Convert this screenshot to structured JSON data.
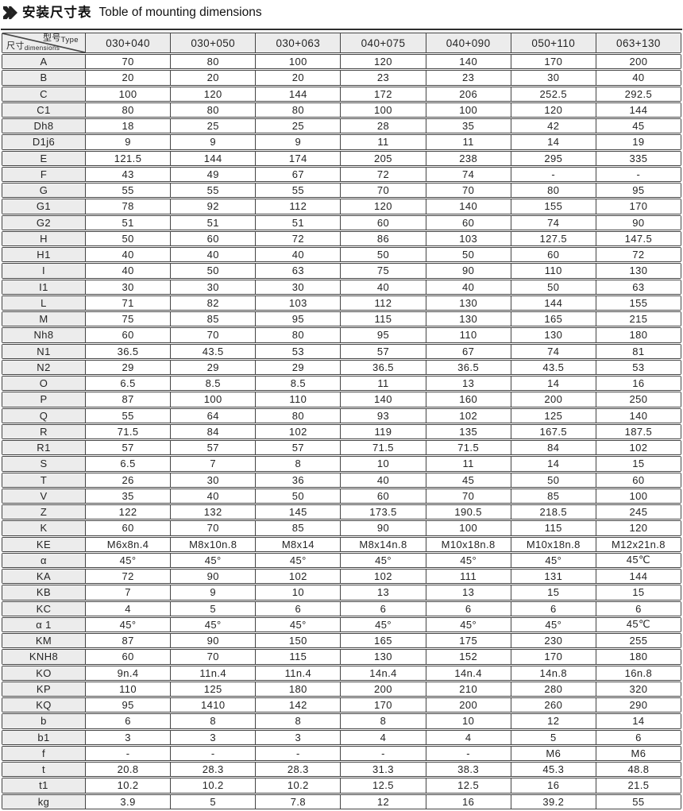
{
  "title": {
    "zh": "安装尺寸表",
    "en": "Toble of mounting dimensions",
    "icon": "double-arrow-icon"
  },
  "colors": {
    "border": "#454545",
    "header_bg": "#ececec",
    "text": "#252525"
  },
  "table": {
    "corner": {
      "type_zh": "型号",
      "type_en": "Type",
      "dim_zh": "尺寸",
      "dim_en": "dimensions"
    },
    "columns": [
      "030+040",
      "030+050",
      "030+063",
      "040+075",
      "040+090",
      "050+110",
      "063+130"
    ],
    "rows": [
      {
        "label": "A",
        "values": [
          "70",
          "80",
          "100",
          "120",
          "140",
          "170",
          "200"
        ]
      },
      {
        "label": "B",
        "values": [
          "20",
          "20",
          "20",
          "23",
          "23",
          "30",
          "40"
        ]
      },
      {
        "label": "C",
        "values": [
          "100",
          "120",
          "144",
          "172",
          "206",
          "252.5",
          "292.5"
        ]
      },
      {
        "label": "C1",
        "values": [
          "80",
          "80",
          "80",
          "100",
          "100",
          "120",
          "144"
        ]
      },
      {
        "label": "Dh8",
        "values": [
          "18",
          "25",
          "25",
          "28",
          "35",
          "42",
          "45"
        ]
      },
      {
        "label": "D1j6",
        "values": [
          "9",
          "9",
          "9",
          "11",
          "11",
          "14",
          "19"
        ]
      },
      {
        "label": "E",
        "values": [
          "121.5",
          "144",
          "174",
          "205",
          "238",
          "295",
          "335"
        ]
      },
      {
        "label": "F",
        "values": [
          "43",
          "49",
          "67",
          "72",
          "74",
          "-",
          "-"
        ]
      },
      {
        "label": "G",
        "values": [
          "55",
          "55",
          "55",
          "70",
          "70",
          "80",
          "95"
        ]
      },
      {
        "label": "G1",
        "values": [
          "78",
          "92",
          "112",
          "120",
          "140",
          "155",
          "170"
        ]
      },
      {
        "label": "G2",
        "values": [
          "51",
          "51",
          "51",
          "60",
          "60",
          "74",
          "90"
        ]
      },
      {
        "label": "H",
        "values": [
          "50",
          "60",
          "72",
          "86",
          "103",
          "127.5",
          "147.5"
        ]
      },
      {
        "label": "H1",
        "values": [
          "40",
          "40",
          "40",
          "50",
          "50",
          "60",
          "72"
        ]
      },
      {
        "label": "I",
        "values": [
          "40",
          "50",
          "63",
          "75",
          "90",
          "110",
          "130"
        ]
      },
      {
        "label": "I1",
        "values": [
          "30",
          "30",
          "30",
          "40",
          "40",
          "50",
          "63"
        ]
      },
      {
        "label": "L",
        "values": [
          "71",
          "82",
          "103",
          "112",
          "130",
          "144",
          "155"
        ]
      },
      {
        "label": "M",
        "values": [
          "75",
          "85",
          "95",
          "115",
          "130",
          "165",
          "215"
        ]
      },
      {
        "label": "Nh8",
        "values": [
          "60",
          "70",
          "80",
          "95",
          "110",
          "130",
          "180"
        ]
      },
      {
        "label": "N1",
        "values": [
          "36.5",
          "43.5",
          "53",
          "57",
          "67",
          "74",
          "81"
        ]
      },
      {
        "label": "N2",
        "values": [
          "29",
          "29",
          "29",
          "36.5",
          "36.5",
          "43.5",
          "53"
        ]
      },
      {
        "label": "O",
        "values": [
          "6.5",
          "8.5",
          "8.5",
          "11",
          "13",
          "14",
          "16"
        ]
      },
      {
        "label": "P",
        "values": [
          "87",
          "100",
          "110",
          "140",
          "160",
          "200",
          "250"
        ]
      },
      {
        "label": "Q",
        "values": [
          "55",
          "64",
          "80",
          "93",
          "102",
          "125",
          "140"
        ]
      },
      {
        "label": "R",
        "values": [
          "71.5",
          "84",
          "102",
          "119",
          "135",
          "167.5",
          "187.5"
        ]
      },
      {
        "label": "R1",
        "values": [
          "57",
          "57",
          "57",
          "71.5",
          "71.5",
          "84",
          "102"
        ]
      },
      {
        "label": "S",
        "values": [
          "6.5",
          "7",
          "8",
          "10",
          "11",
          "14",
          "15"
        ]
      },
      {
        "label": "T",
        "values": [
          "26",
          "30",
          "36",
          "40",
          "45",
          "50",
          "60"
        ]
      },
      {
        "label": "V",
        "values": [
          "35",
          "40",
          "50",
          "60",
          "70",
          "85",
          "100"
        ]
      },
      {
        "label": "Z",
        "values": [
          "122",
          "132",
          "145",
          "173.5",
          "190.5",
          "218.5",
          "245"
        ]
      },
      {
        "label": "K",
        "values": [
          "60",
          "70",
          "85",
          "90",
          "100",
          "115",
          "120"
        ]
      },
      {
        "label": "KE",
        "values": [
          "M6x8n.4",
          "M8x10n.8",
          "M8x14",
          "M8x14n.8",
          "M10x18n.8",
          "M10x18n.8",
          "M12x21n.8"
        ]
      },
      {
        "label": "α",
        "values": [
          "45°",
          "45°",
          "45°",
          "45°",
          "45°",
          "45°",
          "45℃"
        ]
      },
      {
        "label": "KA",
        "values": [
          "72",
          "90",
          "102",
          "102",
          "111",
          "131",
          "144"
        ]
      },
      {
        "label": "KB",
        "values": [
          "7",
          "9",
          "10",
          "13",
          "13",
          "15",
          "15"
        ]
      },
      {
        "label": "KC",
        "values": [
          "4",
          "5",
          "6",
          "6",
          "6",
          "6",
          "6"
        ]
      },
      {
        "label": "α 1",
        "values": [
          "45°",
          "45°",
          "45°",
          "45°",
          "45°",
          "45°",
          "45℃"
        ]
      },
      {
        "label": "KM",
        "values": [
          "87",
          "90",
          "150",
          "165",
          "175",
          "230",
          "255"
        ]
      },
      {
        "label": "KNH8",
        "values": [
          "60",
          "70",
          "115",
          "130",
          "152",
          "170",
          "180"
        ]
      },
      {
        "label": "KO",
        "values": [
          "9n.4",
          "11n.4",
          "11n.4",
          "14n.4",
          "14n.4",
          "14n.8",
          "16n.8"
        ]
      },
      {
        "label": "KP",
        "values": [
          "110",
          "125",
          "180",
          "200",
          "210",
          "280",
          "320"
        ]
      },
      {
        "label": "KQ",
        "values": [
          "95",
          "1410",
          "142",
          "170",
          "200",
          "260",
          "290"
        ]
      },
      {
        "label": "b",
        "values": [
          "6",
          "8",
          "8",
          "8",
          "10",
          "12",
          "14"
        ]
      },
      {
        "label": "b1",
        "values": [
          "3",
          "3",
          "3",
          "4",
          "4",
          "5",
          "6"
        ]
      },
      {
        "label": "f",
        "values": [
          "-",
          "-",
          "-",
          "-",
          "-",
          "M6",
          "M6"
        ]
      },
      {
        "label": "t",
        "values": [
          "20.8",
          "28.3",
          "28.3",
          "31.3",
          "38.3",
          "45.3",
          "48.8"
        ]
      },
      {
        "label": "t1",
        "values": [
          "10.2",
          "10.2",
          "10.2",
          "12.5",
          "12.5",
          "16",
          "21.5"
        ]
      },
      {
        "label": "kg",
        "values": [
          "3.9",
          "5",
          "7.8",
          "12",
          "16",
          "39.2",
          "55"
        ]
      }
    ]
  }
}
